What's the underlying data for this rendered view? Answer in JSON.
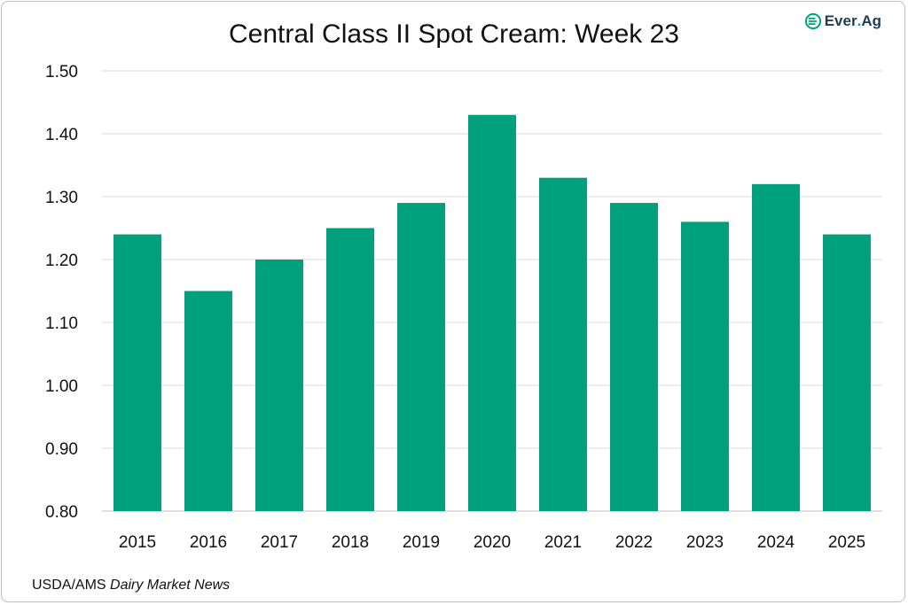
{
  "brand": {
    "name": "Ever",
    "dot": ".",
    "suffix": "Ag",
    "color": "#00a07c"
  },
  "source": {
    "prefix": "USDA/AMS ",
    "italic": "Dairy Market News"
  },
  "chart_data": {
    "type": "bar",
    "title": "Central Class II Spot Cream: Week 23",
    "xlabel": "",
    "ylabel": "",
    "categories": [
      "2015",
      "2016",
      "2017",
      "2018",
      "2019",
      "2020",
      "2021",
      "2022",
      "2023",
      "2024",
      "2025"
    ],
    "values": [
      1.24,
      1.15,
      1.2,
      1.25,
      1.29,
      1.43,
      1.33,
      1.29,
      1.26,
      1.32,
      1.24
    ],
    "ylim": [
      0.8,
      1.5
    ],
    "yticks": [
      "0.80",
      "0.90",
      "1.00",
      "1.10",
      "1.20",
      "1.30",
      "1.40",
      "1.50"
    ],
    "bar_color": "#00a07c",
    "grid": true,
    "legend": "none"
  }
}
